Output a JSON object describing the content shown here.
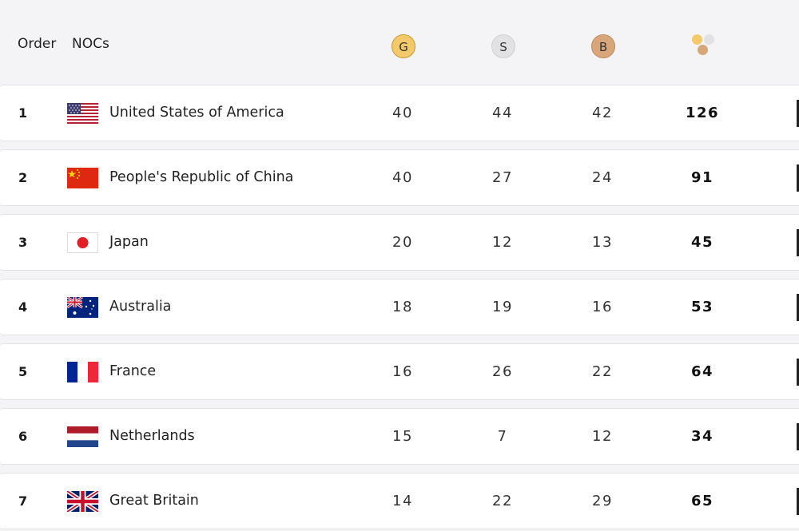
{
  "header": {
    "order_label": "Order",
    "noc_label": "NOCs",
    "gold_label": "G",
    "silver_label": "S",
    "bronze_label": "B",
    "total_icon": "medal-stack-icon"
  },
  "colors": {
    "gold": "#f3c96a",
    "silver": "#e2e2e4",
    "bronze": "#d9a679"
  },
  "rows": [
    {
      "order": "1",
      "name": "United States of America",
      "flag": "usa-flag-icon",
      "gold": "40",
      "silver": "44",
      "bronze": "42",
      "total": "126"
    },
    {
      "order": "2",
      "name": "People's Republic of China",
      "flag": "china-flag-icon",
      "gold": "40",
      "silver": "27",
      "bronze": "24",
      "total": "91"
    },
    {
      "order": "3",
      "name": "Japan",
      "flag": "japan-flag-icon",
      "gold": "20",
      "silver": "12",
      "bronze": "13",
      "total": "45"
    },
    {
      "order": "4",
      "name": "Australia",
      "flag": "australia-flag-icon",
      "gold": "18",
      "silver": "19",
      "bronze": "16",
      "total": "53"
    },
    {
      "order": "5",
      "name": "France",
      "flag": "france-flag-icon",
      "gold": "16",
      "silver": "26",
      "bronze": "22",
      "total": "64"
    },
    {
      "order": "6",
      "name": "Netherlands",
      "flag": "netherlands-flag-icon",
      "gold": "15",
      "silver": "7",
      "bronze": "12",
      "total": "34"
    },
    {
      "order": "7",
      "name": "Great Britain",
      "flag": "great-britain-flag-icon",
      "gold": "14",
      "silver": "22",
      "bronze": "29",
      "total": "65"
    }
  ]
}
